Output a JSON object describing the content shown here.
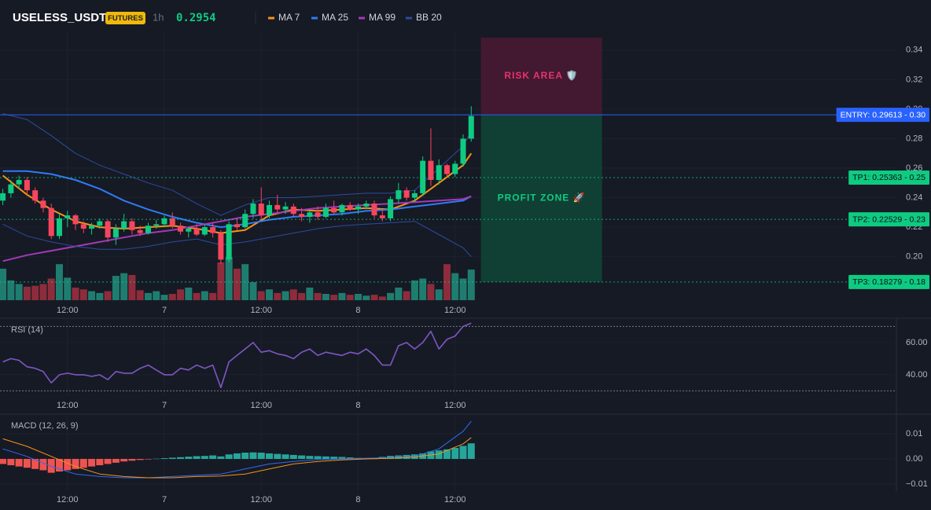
{
  "header": {
    "symbol": "USELESS_USDT",
    "badge": "FUTURES",
    "interval": "1h",
    "price": "0.2954"
  },
  "chart_data": [
    {
      "type": "candlestick",
      "x": [
        -20,
        -19,
        -18,
        -17,
        -16,
        -15,
        -14,
        -13,
        -12,
        -11,
        -10,
        -9,
        -8,
        -7,
        -6,
        -5,
        -4,
        -3,
        -2,
        -1,
        0,
        1,
        2,
        3,
        4,
        5,
        6,
        7,
        8,
        9,
        10,
        11,
        12,
        13,
        14,
        15,
        16,
        17,
        18,
        19,
        20,
        21,
        22,
        23,
        24,
        25,
        26,
        27,
        28,
        29,
        30,
        31,
        32,
        33,
        34,
        35,
        36,
        37,
        38
      ],
      "open": [
        0.238,
        0.243,
        0.249,
        0.252,
        0.245,
        0.238,
        0.233,
        0.214,
        0.226,
        0.228,
        0.222,
        0.219,
        0.221,
        0.224,
        0.213,
        0.219,
        0.224,
        0.218,
        0.216,
        0.221,
        0.222,
        0.226,
        0.221,
        0.217,
        0.219,
        0.215,
        0.22,
        0.216,
        0.198,
        0.222,
        0.22,
        0.229,
        0.236,
        0.228,
        0.235,
        0.232,
        0.234,
        0.229,
        0.227,
        0.23,
        0.227,
        0.233,
        0.23,
        0.235,
        0.232,
        0.234,
        0.236,
        0.228,
        0.226,
        0.239,
        0.245,
        0.24,
        0.243,
        0.265,
        0.252,
        0.262,
        0.256,
        0.263,
        0.28
      ],
      "high": [
        0.246,
        0.252,
        0.255,
        0.254,
        0.247,
        0.24,
        0.236,
        0.229,
        0.231,
        0.229,
        0.224,
        0.223,
        0.226,
        0.225,
        0.222,
        0.229,
        0.226,
        0.221,
        0.223,
        0.225,
        0.228,
        0.23,
        0.223,
        0.22,
        0.222,
        0.222,
        0.223,
        0.218,
        0.224,
        0.226,
        0.232,
        0.239,
        0.247,
        0.238,
        0.242,
        0.237,
        0.236,
        0.233,
        0.231,
        0.234,
        0.236,
        0.238,
        0.236,
        0.237,
        0.236,
        0.238,
        0.238,
        0.232,
        0.241,
        0.25,
        0.247,
        0.245,
        0.268,
        0.287,
        0.266,
        0.263,
        0.265,
        0.283,
        0.302
      ],
      "low": [
        0.235,
        0.24,
        0.246,
        0.242,
        0.236,
        0.23,
        0.212,
        0.212,
        0.22,
        0.218,
        0.216,
        0.215,
        0.219,
        0.21,
        0.208,
        0.217,
        0.215,
        0.214,
        0.215,
        0.219,
        0.22,
        0.219,
        0.215,
        0.213,
        0.214,
        0.214,
        0.213,
        0.195,
        0.196,
        0.218,
        0.219,
        0.226,
        0.225,
        0.226,
        0.23,
        0.229,
        0.227,
        0.224,
        0.223,
        0.225,
        0.226,
        0.229,
        0.228,
        0.231,
        0.229,
        0.232,
        0.226,
        0.224,
        0.224,
        0.236,
        0.238,
        0.237,
        0.241,
        0.248,
        0.249,
        0.254,
        0.254,
        0.261,
        0.278
      ],
      "close": [
        0.243,
        0.249,
        0.252,
        0.245,
        0.238,
        0.233,
        0.214,
        0.226,
        0.228,
        0.222,
        0.219,
        0.221,
        0.224,
        0.213,
        0.219,
        0.224,
        0.218,
        0.216,
        0.221,
        0.222,
        0.226,
        0.221,
        0.217,
        0.219,
        0.215,
        0.22,
        0.216,
        0.198,
        0.222,
        0.22,
        0.229,
        0.236,
        0.228,
        0.235,
        0.232,
        0.234,
        0.229,
        0.227,
        0.23,
        0.227,
        0.233,
        0.23,
        0.235,
        0.232,
        0.234,
        0.236,
        0.228,
        0.226,
        0.239,
        0.245,
        0.24,
        0.243,
        0.265,
        0.252,
        0.262,
        0.256,
        0.263,
        0.28,
        0.2954
      ],
      "volume": [
        35,
        22,
        18,
        15,
        16,
        18,
        24,
        40,
        25,
        14,
        12,
        10,
        8,
        10,
        27,
        30,
        28,
        11,
        8,
        10,
        6,
        7,
        12,
        14,
        8,
        10,
        8,
        42,
        48,
        35,
        40,
        20,
        10,
        12,
        8,
        10,
        12,
        8,
        14,
        8,
        7,
        6,
        8,
        6,
        7,
        5,
        6,
        4,
        8,
        14,
        10,
        22,
        24,
        18,
        12,
        40,
        30,
        24,
        34
      ],
      "up_color": "#0ecb81",
      "down_color": "#f6465d",
      "volume_up_color": "#1f7d70",
      "volume_down_color": "#8e2c3c",
      "series": [
        {
          "name": "MA 7",
          "color": "#f7931a",
          "x": [
            -20,
            -17,
            -14,
            -11,
            -8,
            -5,
            -2,
            1,
            4,
            7,
            10,
            13,
            16,
            19,
            22,
            25,
            28,
            31,
            34,
            37,
            38
          ],
          "values": [
            0.255,
            0.242,
            0.232,
            0.224,
            0.22,
            0.219,
            0.22,
            0.221,
            0.219,
            0.216,
            0.218,
            0.228,
            0.232,
            0.231,
            0.232,
            0.233,
            0.232,
            0.238,
            0.25,
            0.262,
            0.27
          ]
        },
        {
          "name": "MA 25",
          "color": "#2f7bf5",
          "x": [
            -20,
            -17,
            -14,
            -11,
            -8,
            -5,
            -2,
            1,
            4,
            7,
            10,
            13,
            16,
            19,
            22,
            25,
            28,
            31,
            34,
            37,
            38
          ],
          "values": [
            0.258,
            0.258,
            0.256,
            0.252,
            0.246,
            0.238,
            0.232,
            0.227,
            0.223,
            0.22,
            0.222,
            0.225,
            0.227,
            0.228,
            0.229,
            0.231,
            0.232,
            0.234,
            0.236,
            0.238,
            0.241
          ]
        },
        {
          "name": "MA 99",
          "color": "#a23ab8",
          "x": [
            -20,
            -17,
            -14,
            -11,
            -8,
            -5,
            -2,
            1,
            4,
            7,
            10,
            13,
            16,
            19,
            22,
            25,
            28,
            31,
            34,
            37,
            38
          ],
          "values": [
            0.197,
            0.201,
            0.204,
            0.207,
            0.21,
            0.213,
            0.216,
            0.218,
            0.221,
            0.224,
            0.227,
            0.229,
            0.231,
            0.233,
            0.234,
            0.235,
            0.236,
            0.237,
            0.238,
            0.239,
            0.241
          ]
        },
        {
          "name": "BB 20",
          "color": "#2b4c9e",
          "x": [
            -20,
            -17,
            -14,
            -11,
            -8,
            -5,
            -2,
            1,
            4,
            7,
            10,
            13,
            16,
            19,
            22,
            25,
            28,
            31,
            34,
            37,
            38
          ],
          "values": [
            0.297,
            0.293,
            0.282,
            0.27,
            0.262,
            0.256,
            0.25,
            0.245,
            0.236,
            0.228,
            0.235,
            0.24,
            0.24,
            0.241,
            0.242,
            0.243,
            0.243,
            0.245,
            0.26,
            0.275,
            0.285
          ],
          "lower": [
            0.222,
            0.214,
            0.21,
            0.207,
            0.205,
            0.205,
            0.207,
            0.21,
            0.212,
            0.208,
            0.21,
            0.213,
            0.216,
            0.219,
            0.221,
            0.222,
            0.223,
            0.224,
            0.215,
            0.206,
            0.2
          ]
        }
      ],
      "levels": [
        {
          "label": "ENTRY: 0.29613 - 0.30",
          "value": 0.29613,
          "color": "#2962ff",
          "text_color": "#ffffff",
          "dashed": false
        },
        {
          "label": "TP1: 0.25363 - 0.25",
          "value": 0.25363,
          "color": "#0ecb81",
          "text_color": "#0b0e14",
          "dashed": true
        },
        {
          "label": "TP2: 0.22529 - 0.23",
          "value": 0.22529,
          "color": "#0ecb81",
          "text_color": "#0b0e14",
          "dashed": true
        },
        {
          "label": "TP3: 0.18279 - 0.18",
          "value": 0.18279,
          "color": "#0ecb81",
          "text_color": "#0b0e14",
          "dashed": true
        }
      ],
      "zones": [
        {
          "label": "RISK AREA 🛡️",
          "from": 0.29613,
          "to": 0.3485,
          "x_from": 39.2,
          "x_to": 54.2,
          "color": "#4a1a32",
          "text_color": "#e8336f"
        },
        {
          "label": "PROFIT ZONE 🚀",
          "from": 0.18279,
          "to": 0.29613,
          "x_from": 39.2,
          "x_to": 54.2,
          "color": "#0f4636",
          "text_color": "#0ecb81"
        }
      ],
      "xlim": [
        -20.35,
        90.65
      ],
      "xticks": [
        {
          "value": -12,
          "label": "12:00"
        },
        {
          "value": 0,
          "label": "7"
        },
        {
          "value": 12,
          "label": "12:00"
        },
        {
          "value": 24,
          "label": "8"
        },
        {
          "value": 36,
          "label": "12:00"
        }
      ],
      "ylim": [
        0.1705,
        0.3527
      ],
      "yticks": [
        {
          "value": 0.2,
          "label": "0.20"
        },
        {
          "value": 0.22,
          "label": "0.22"
        },
        {
          "value": 0.24,
          "label": "0.24"
        },
        {
          "value": 0.26,
          "label": "0.26"
        },
        {
          "value": 0.28,
          "label": "0.28"
        },
        {
          "value": 0.3,
          "label": "0.30"
        },
        {
          "value": 0.32,
          "label": "0.32"
        },
        {
          "value": 0.34,
          "label": "0.34"
        }
      ],
      "grid": true
    },
    {
      "type": "line",
      "title": "RSI (14)",
      "color": "#7e57c2",
      "x": [
        -20,
        -19,
        -18,
        -17,
        -16,
        -15,
        -14,
        -13,
        -12,
        -11,
        -10,
        -9,
        -8,
        -7,
        -6,
        -5,
        -4,
        -3,
        -2,
        -1,
        0,
        1,
        2,
        3,
        4,
        5,
        6,
        7,
        8,
        9,
        10,
        11,
        12,
        13,
        14,
        15,
        16,
        17,
        18,
        19,
        20,
        21,
        22,
        23,
        24,
        25,
        26,
        27,
        28,
        29,
        30,
        31,
        32,
        33,
        34,
        35,
        36,
        37,
        38
      ],
      "values": [
        48,
        50,
        49,
        45,
        44,
        42,
        35,
        40,
        41,
        40,
        40,
        39,
        40,
        37,
        42,
        41,
        41,
        44,
        46,
        43,
        40,
        40,
        44,
        43,
        46,
        44,
        46,
        32,
        48,
        52,
        56,
        60,
        54,
        55,
        53,
        52,
        50,
        54,
        56,
        52,
        54,
        53,
        52,
        54,
        53,
        56,
        52,
        46,
        46,
        58,
        60,
        56,
        60,
        67,
        56,
        62,
        64,
        70,
        72
      ],
      "levels": [
        30,
        70
      ],
      "xlim": [
        -20.35,
        90.65
      ],
      "xticks": [
        {
          "value": -12,
          "label": "12:00"
        },
        {
          "value": 0,
          "label": "7"
        },
        {
          "value": 12,
          "label": "12:00"
        },
        {
          "value": 24,
          "label": "8"
        },
        {
          "value": 36,
          "label": "12:00"
        }
      ],
      "ylim": [
        26.3,
        74.6
      ],
      "yticks": [
        {
          "value": 40,
          "label": "40.00"
        },
        {
          "value": 60,
          "label": "60.00"
        }
      ],
      "grid": true
    },
    {
      "type": "macd",
      "title": "MACD (12, 26, 9)",
      "up_color": "#26a69a",
      "down_color": "#ef5350",
      "x": [
        -20,
        -19,
        -18,
        -17,
        -16,
        -15,
        -14,
        -13,
        -12,
        -11,
        -10,
        -9,
        -8,
        -7,
        -6,
        -5,
        -4,
        -3,
        -2,
        -1,
        0,
        1,
        2,
        3,
        4,
        5,
        6,
        7,
        8,
        9,
        10,
        11,
        12,
        13,
        14,
        15,
        16,
        17,
        18,
        19,
        20,
        21,
        22,
        23,
        24,
        25,
        26,
        27,
        28,
        29,
        30,
        31,
        32,
        33,
        34,
        35,
        36,
        37,
        38
      ],
      "values": [
        -0.002,
        -0.0025,
        -0.003,
        -0.0035,
        -0.004,
        -0.0045,
        -0.0055,
        -0.005,
        -0.0045,
        -0.004,
        -0.0035,
        -0.003,
        -0.0025,
        -0.002,
        -0.0015,
        -0.001,
        -0.0007,
        -0.0004,
        -0.0002,
        0.0001,
        0.0003,
        0.0005,
        0.0007,
        0.0009,
        0.0011,
        0.0012,
        0.0014,
        0.001,
        0.0018,
        0.0022,
        0.0025,
        0.0026,
        0.0025,
        0.0022,
        0.002,
        0.0018,
        0.0016,
        0.0014,
        0.0012,
        0.0011,
        0.001,
        0.0009,
        0.0008,
        0.0006,
        0.0004,
        0.0002,
        0.0001,
        0.0008,
        0.0012,
        0.0014,
        0.0016,
        0.0018,
        0.0022,
        0.003,
        0.0034,
        0.0038,
        0.0044,
        0.0052,
        0.0062
      ],
      "series": [
        {
          "color": "#2f6bf0",
          "x": [
            -20,
            -17,
            -14,
            -11,
            -8,
            -5,
            -2,
            1,
            4,
            7,
            10,
            13,
            16,
            19,
            22,
            25,
            28,
            31,
            34,
            37,
            38
          ],
          "values": [
            0.004,
            0.001,
            -0.003,
            -0.006,
            -0.007,
            -0.0075,
            -0.0075,
            -0.007,
            -0.0065,
            -0.006,
            -0.004,
            -0.002,
            -0.001,
            -0.0002,
            0.0,
            0.0003,
            0.0005,
            0.001,
            0.004,
            0.011,
            0.015
          ]
        },
        {
          "color": "#f7931a",
          "x": [
            -20,
            -17,
            -14,
            -11,
            -8,
            -5,
            -2,
            1,
            4,
            7,
            10,
            13,
            16,
            19,
            22,
            25,
            28,
            31,
            34,
            37,
            38
          ],
          "values": [
            0.008,
            0.005,
            0.001,
            -0.003,
            -0.006,
            -0.007,
            -0.0075,
            -0.0075,
            -0.007,
            -0.0068,
            -0.006,
            -0.004,
            -0.002,
            -0.001,
            -0.0004,
            0.0,
            0.0003,
            0.0008,
            0.002,
            0.006,
            0.0085
          ]
        }
      ],
      "xlim": [
        -20.35,
        90.65
      ],
      "xticks": [
        {
          "value": -12,
          "label": "12:00"
        },
        {
          "value": 0,
          "label": "7"
        },
        {
          "value": 12,
          "label": "12:00"
        },
        {
          "value": 24,
          "label": "8"
        },
        {
          "value": 36,
          "label": "12:00"
        }
      ],
      "ylim": [
        -0.0128,
        0.0175
      ],
      "yticks": [
        {
          "value": -0.01,
          "label": "−0.01"
        },
        {
          "value": 0,
          "label": "0.00"
        },
        {
          "value": 0.01,
          "label": "0.01"
        }
      ],
      "grid": true
    }
  ]
}
